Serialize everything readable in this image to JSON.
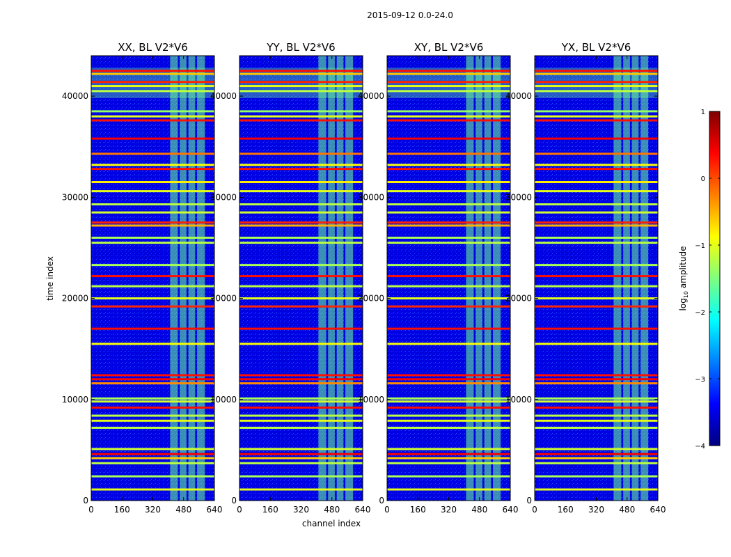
{
  "chart_data": {
    "type": "heatmap",
    "suptitle": "2015-09-12 0.0-24.0",
    "xlabel": "channel index",
    "ylabel": "time index",
    "xlim": [
      0,
      640
    ],
    "ylim": [
      0,
      44000
    ],
    "x_ticks": [
      0,
      160,
      320,
      480,
      640
    ],
    "y_ticks": [
      0,
      10000,
      20000,
      30000,
      40000
    ],
    "colorbar": {
      "label": "log10 amplitude",
      "label_prefix": "log",
      "label_sub": "10",
      "label_suffix": " amplitude",
      "range": [
        -4,
        1
      ],
      "ticks": [
        -4,
        -3,
        -2,
        -1,
        0,
        1
      ],
      "tick_labels": [
        "−4",
        "−3",
        "−2",
        "−1",
        "0",
        "1"
      ],
      "colormap": "jet",
      "colors": [
        "#00007f",
        "#0000ff",
        "#007fff",
        "#00ffff",
        "#7fff7f",
        "#ffff00",
        "#ff7f00",
        "#ff0000",
        "#7f0000"
      ]
    },
    "panels": [
      {
        "title": "XX, BL V2*V6"
      },
      {
        "title": "YY, BL V2*V6"
      },
      {
        "title": "XY, BL V2*V6"
      },
      {
        "title": "YX, BL V2*V6"
      }
    ],
    "background_log_amp": -3.5,
    "rfi_band_channels": [
      [
        410,
        450
      ],
      [
        460,
        495
      ],
      [
        505,
        540
      ],
      [
        550,
        590
      ]
    ],
    "rfi_band_log_amp": -1.6,
    "flagged_rows": [
      {
        "t": 42500,
        "amp": 0.3
      },
      {
        "t": 42200,
        "amp": -0.6
      },
      {
        "t": 41400,
        "amp": 0.2
      },
      {
        "t": 41000,
        "amp": -1.0
      },
      {
        "t": 40500,
        "amp": -1.2
      },
      {
        "t": 38500,
        "amp": -1.4
      },
      {
        "t": 38000,
        "amp": -1.0
      },
      {
        "t": 37600,
        "amp": 0.3
      },
      {
        "t": 35800,
        "amp": 0.4
      },
      {
        "t": 34300,
        "amp": -0.2
      },
      {
        "t": 33200,
        "amp": -0.9
      },
      {
        "t": 32800,
        "amp": 0.3
      },
      {
        "t": 31500,
        "amp": -0.8
      },
      {
        "t": 30600,
        "amp": -1.0
      },
      {
        "t": 29300,
        "amp": -1.2
      },
      {
        "t": 28500,
        "amp": -1.1
      },
      {
        "t": 27500,
        "amp": 0.2
      },
      {
        "t": 27200,
        "amp": -0.5
      },
      {
        "t": 26000,
        "amp": -1.3
      },
      {
        "t": 25500,
        "amp": -1.2
      },
      {
        "t": 23300,
        "amp": -1.3
      },
      {
        "t": 22200,
        "amp": 0.3
      },
      {
        "t": 21200,
        "amp": -1.2
      },
      {
        "t": 20000,
        "amp": -1.0
      },
      {
        "t": 19200,
        "amp": 0.2
      },
      {
        "t": 17000,
        "amp": 0.3
      },
      {
        "t": 15500,
        "amp": -0.9
      },
      {
        "t": 12400,
        "amp": 0.3
      },
      {
        "t": 12000,
        "amp": 0.4
      },
      {
        "t": 11600,
        "amp": -0.3
      },
      {
        "t": 10100,
        "amp": -1.3
      },
      {
        "t": 9800,
        "amp": -1.1
      },
      {
        "t": 9200,
        "amp": 0.3
      },
      {
        "t": 8400,
        "amp": -1.2
      },
      {
        "t": 7900,
        "amp": -1.0
      },
      {
        "t": 7200,
        "amp": -1.2
      },
      {
        "t": 5100,
        "amp": -1.1
      },
      {
        "t": 4600,
        "amp": 0.4
      },
      {
        "t": 4200,
        "amp": -0.6
      },
      {
        "t": 3700,
        "amp": -1.2
      },
      {
        "t": 2400,
        "amp": -1.3
      },
      {
        "t": 1100,
        "amp": -1.0
      }
    ],
    "flagged_row_span": [
      39800,
      42800
    ]
  }
}
